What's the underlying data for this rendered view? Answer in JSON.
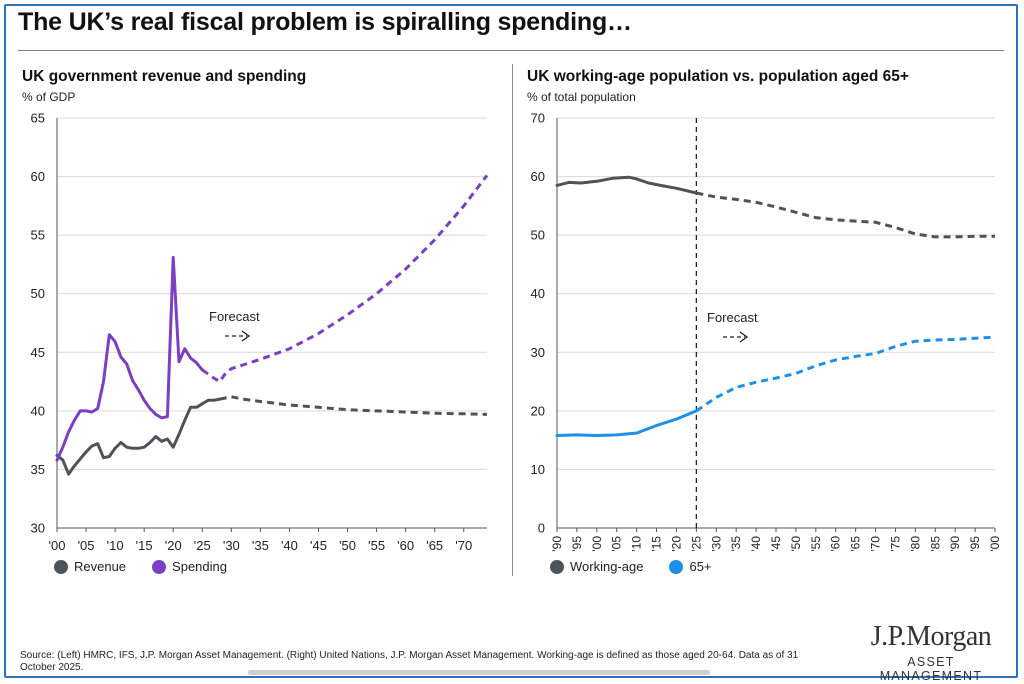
{
  "header": {
    "title": "The UK’s real fiscal problem is spiralling spending…"
  },
  "left_panel": {
    "title": "UK government revenue and spending",
    "unit": "% of GDP",
    "forecast_label": "Forecast",
    "legend": [
      {
        "label": "Revenue",
        "color": "#4d5358"
      },
      {
        "label": "Spending",
        "color": "#7b3fc3"
      }
    ]
  },
  "right_panel": {
    "title": "UK working-age population vs. population aged 65+",
    "unit": "% of total population",
    "forecast_label": "Forecast",
    "legend": [
      {
        "label": "Working-age",
        "color": "#4d5358"
      },
      {
        "label": "65+",
        "color": "#1e90e8"
      }
    ]
  },
  "footer": {
    "source": "Source: (Left) HMRC, IFS, J.P. Morgan Asset Management. (Right) United Nations, J.P. Morgan Asset Management. Working-age is defined as those aged 20-64. Data as of 31 October 2025.",
    "logo_main": "J.P.Morgan",
    "logo_sub": "ASSET MANAGEMENT"
  },
  "chart_data": [
    {
      "type": "line",
      "title": "UK government revenue and spending",
      "ylabel": "% of GDP",
      "xlim": [
        2000,
        2074
      ],
      "ylim": [
        30,
        65
      ],
      "yticks": [
        30,
        35,
        40,
        45,
        50,
        55,
        60,
        65
      ],
      "xticks": [
        2000,
        2005,
        2010,
        2015,
        2020,
        2025,
        2030,
        2035,
        2040,
        2045,
        2050,
        2055,
        2060,
        2065,
        2070
      ],
      "xtick_labels": [
        "'00",
        "'05",
        "'10",
        "'15",
        "'20",
        "'25",
        "'30",
        "'35",
        "'40",
        "'45",
        "'50",
        "'55",
        "'60",
        "'65",
        "'70"
      ],
      "grid": true,
      "legend_position": "bottom-left",
      "forecast_start": 2028,
      "series": [
        {
          "name": "Revenue",
          "color": "#4d5358",
          "actual": [
            [
              2000,
              36.2
            ],
            [
              2001,
              35.8
            ],
            [
              2002,
              34.6
            ],
            [
              2003,
              35.3
            ],
            [
              2004,
              35.9
            ],
            [
              2005,
              36.5
            ],
            [
              2006,
              37.0
            ],
            [
              2007,
              37.2
            ],
            [
              2008,
              36.0
            ],
            [
              2009,
              36.1
            ],
            [
              2010,
              36.8
            ],
            [
              2011,
              37.3
            ],
            [
              2012,
              36.9
            ],
            [
              2013,
              36.8
            ],
            [
              2014,
              36.8
            ],
            [
              2015,
              36.9
            ],
            [
              2016,
              37.3
            ],
            [
              2017,
              37.8
            ],
            [
              2018,
              37.4
            ],
            [
              2019,
              37.6
            ],
            [
              2020,
              36.9
            ],
            [
              2021,
              38.0
            ],
            [
              2022,
              39.2
            ],
            [
              2023,
              40.3
            ],
            [
              2024,
              40.3
            ],
            [
              2025,
              40.6
            ],
            [
              2026,
              40.9
            ],
            [
              2027,
              40.9
            ],
            [
              2028,
              41.0
            ]
          ],
          "forecast": [
            [
              2028,
              41.0
            ],
            [
              2030,
              41.2
            ],
            [
              2032,
              41.0
            ],
            [
              2035,
              40.8
            ],
            [
              2040,
              40.5
            ],
            [
              2045,
              40.3
            ],
            [
              2050,
              40.1
            ],
            [
              2055,
              40.0
            ],
            [
              2060,
              39.9
            ],
            [
              2065,
              39.8
            ],
            [
              2070,
              39.75
            ],
            [
              2074,
              39.7
            ]
          ]
        },
        {
          "name": "Spending",
          "color": "#7b3fc3",
          "actual": [
            [
              2000,
              35.8
            ],
            [
              2001,
              36.9
            ],
            [
              2002,
              38.2
            ],
            [
              2003,
              39.2
            ],
            [
              2004,
              40.0
            ],
            [
              2005,
              40.0
            ],
            [
              2006,
              39.9
            ],
            [
              2007,
              40.2
            ],
            [
              2008,
              42.5
            ],
            [
              2009,
              46.5
            ],
            [
              2010,
              45.9
            ],
            [
              2011,
              44.6
            ],
            [
              2012,
              44.0
            ],
            [
              2013,
              42.6
            ],
            [
              2014,
              41.8
            ],
            [
              2015,
              40.9
            ],
            [
              2016,
              40.2
            ],
            [
              2017,
              39.7
            ],
            [
              2018,
              39.4
            ],
            [
              2019,
              39.5
            ],
            [
              2020,
              53.1
            ],
            [
              2021,
              44.2
            ],
            [
              2022,
              45.3
            ],
            [
              2023,
              44.5
            ],
            [
              2024,
              44.1
            ],
            [
              2025,
              43.5
            ]
          ],
          "forecast": [
            [
              2025,
              43.5
            ],
            [
              2027,
              42.8
            ],
            [
              2028,
              42.5
            ],
            [
              2029,
              43.2
            ],
            [
              2030,
              43.6
            ],
            [
              2035,
              44.4
            ],
            [
              2040,
              45.3
            ],
            [
              2045,
              46.6
            ],
            [
              2050,
              48.2
            ],
            [
              2055,
              50.0
            ],
            [
              2060,
              52.1
            ],
            [
              2065,
              54.6
            ],
            [
              2070,
              57.5
            ],
            [
              2072,
              58.8
            ],
            [
              2074,
              60.1
            ]
          ]
        }
      ]
    },
    {
      "type": "line",
      "title": "UK working-age population vs. population aged 65+",
      "ylabel": "% of total population",
      "xlim": [
        1990,
        2100
      ],
      "ylim": [
        0,
        70
      ],
      "yticks": [
        0,
        10,
        20,
        30,
        40,
        50,
        60,
        70
      ],
      "xticks": [
        1990,
        1995,
        2000,
        2005,
        2010,
        2015,
        2020,
        2025,
        2030,
        2035,
        2040,
        2045,
        2050,
        2055,
        2060,
        2065,
        2070,
        2075,
        2080,
        2085,
        2090,
        2095,
        2100
      ],
      "xtick_labels": [
        "'90",
        "'95",
        "'00",
        "'05",
        "'10",
        "'15",
        "'20",
        "'25",
        "'30",
        "'35",
        "'40",
        "'45",
        "'50",
        "'55",
        "'60",
        "'65",
        "'70",
        "'75",
        "'80",
        "'85",
        "'90",
        "'95",
        "'00"
      ],
      "grid": true,
      "legend_position": "bottom-left",
      "forecast_start": 2025,
      "series": [
        {
          "name": "Working-age",
          "color": "#4d5358",
          "actual": [
            [
              1990,
              58.5
            ],
            [
              1993,
              59.0
            ],
            [
              1996,
              58.9
            ],
            [
              2000,
              59.2
            ],
            [
              2004,
              59.7
            ],
            [
              2008,
              59.9
            ],
            [
              2010,
              59.6
            ],
            [
              2013,
              58.9
            ],
            [
              2016,
              58.5
            ],
            [
              2020,
              58.0
            ],
            [
              2025,
              57.2
            ]
          ],
          "forecast": [
            [
              2025,
              57.2
            ],
            [
              2030,
              56.5
            ],
            [
              2035,
              56.1
            ],
            [
              2040,
              55.6
            ],
            [
              2045,
              54.8
            ],
            [
              2050,
              53.9
            ],
            [
              2055,
              53.0
            ],
            [
              2060,
              52.6
            ],
            [
              2065,
              52.4
            ],
            [
              2070,
              52.2
            ],
            [
              2075,
              51.3
            ],
            [
              2080,
              50.2
            ],
            [
              2085,
              49.7
            ],
            [
              2090,
              49.7
            ],
            [
              2095,
              49.8
            ],
            [
              2100,
              49.8
            ]
          ]
        },
        {
          "name": "65+",
          "color": "#1e90e8",
          "actual": [
            [
              1990,
              15.8
            ],
            [
              1995,
              15.9
            ],
            [
              2000,
              15.8
            ],
            [
              2005,
              15.9
            ],
            [
              2010,
              16.2
            ],
            [
              2015,
              17.5
            ],
            [
              2020,
              18.6
            ],
            [
              2025,
              20.0
            ]
          ],
          "forecast": [
            [
              2025,
              20.0
            ],
            [
              2030,
              22.3
            ],
            [
              2035,
              24.0
            ],
            [
              2040,
              24.9
            ],
            [
              2045,
              25.6
            ],
            [
              2050,
              26.4
            ],
            [
              2055,
              27.7
            ],
            [
              2060,
              28.7
            ],
            [
              2065,
              29.3
            ],
            [
              2070,
              29.8
            ],
            [
              2075,
              31.0
            ],
            [
              2080,
              31.9
            ],
            [
              2085,
              32.1
            ],
            [
              2090,
              32.2
            ],
            [
              2095,
              32.4
            ],
            [
              2100,
              32.6
            ]
          ]
        }
      ]
    }
  ]
}
